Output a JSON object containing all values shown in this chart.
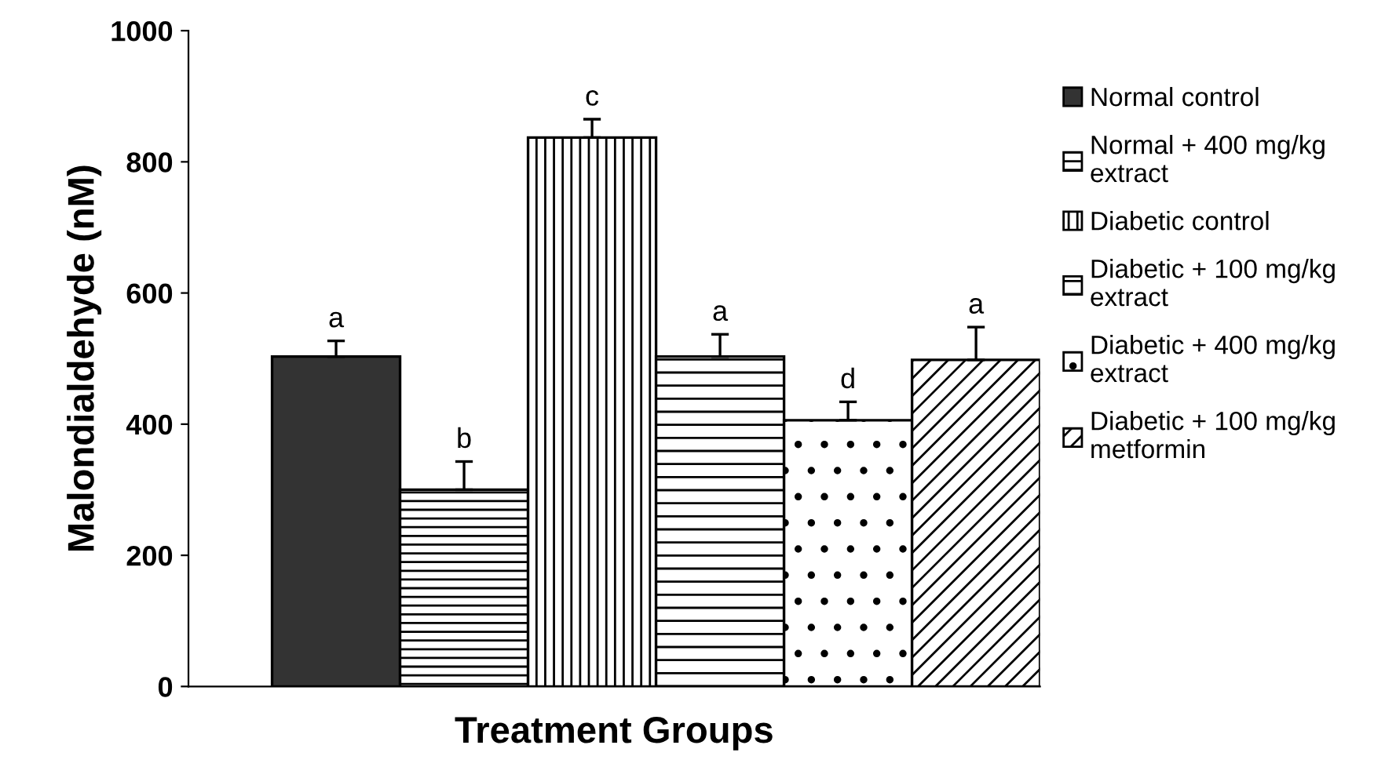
{
  "chart_data": {
    "type": "bar",
    "xlabel": "Treatment Groups",
    "ylabel": "Malondialdehyde (nM)",
    "categories": [
      null
    ],
    "series": [
      {
        "name": "Normal control",
        "color": "#333333",
        "values": [
          503
        ],
        "errors": [
          24
        ],
        "value_labels": [
          "a"
        ]
      },
      {
        "name": "Normal + 400 mg/kg\nextract",
        "color": "#000000",
        "values": [
          300
        ],
        "errors": [
          43
        ],
        "value_labels": [
          "b"
        ]
      },
      {
        "name": "Diabetic control",
        "color": "#000000",
        "values": [
          837
        ],
        "errors": [
          28
        ],
        "value_labels": [
          "c"
        ]
      },
      {
        "name": "Diabetic + 100 mg/kg\nextract",
        "color": "#000000",
        "values": [
          503
        ],
        "errors": [
          34
        ],
        "value_labels": [
          "a"
        ]
      },
      {
        "name": "Diabetic + 400 mg/kg\nextract",
        "color": "#000000",
        "values": [
          406
        ],
        "errors": [
          28
        ],
        "value_labels": [
          "d"
        ]
      },
      {
        "name": "Diabetic + 100 mg/kg\nmetformin",
        "color": "#000000",
        "values": [
          498
        ],
        "errors": [
          50
        ],
        "value_labels": [
          "a"
        ]
      }
    ],
    "ylim": [
      0,
      1000
    ],
    "yticks": [
      0,
      200,
      400,
      600,
      800,
      1000
    ],
    "grid": false,
    "legend": "right"
  }
}
